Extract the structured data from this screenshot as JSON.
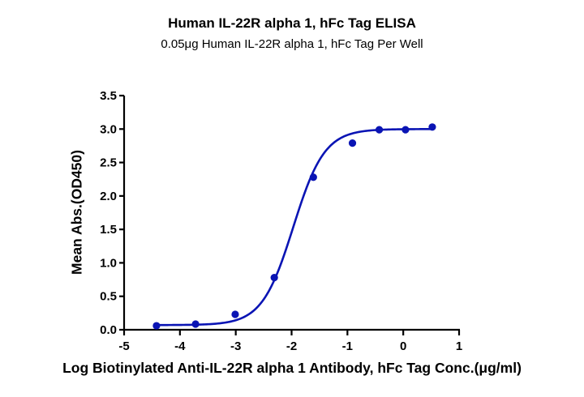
{
  "chart_data": {
    "type": "scatter",
    "title": "Human IL-22R alpha 1, hFc Tag ELISA",
    "subtitle": "0.05μg Human IL-22R alpha 1, hFc Tag Per Well",
    "xlabel": "Log Biotinylated Anti-IL-22R alpha 1 Antibody, hFc Tag Conc.(μg/ml)",
    "ylabel": "Mean Abs.(OD450)",
    "xlim": [
      -5,
      1
    ],
    "ylim": [
      0,
      3.5
    ],
    "x_ticks": [
      -5,
      -4,
      -3,
      -2,
      -1,
      0,
      1
    ],
    "x_tick_labels": [
      "-5",
      "-4",
      "-3",
      "-2",
      "-1",
      "0",
      "1"
    ],
    "y_ticks": [
      0,
      0.5,
      1.0,
      1.5,
      2.0,
      2.5,
      3.0,
      3.5
    ],
    "y_tick_labels": [
      "0.0",
      "0.5",
      "1.0",
      "1.5",
      "2.0",
      "2.5",
      "3.0",
      "3.5"
    ],
    "grid": false,
    "legend": null,
    "series": [
      {
        "name": "Mean Abs.(OD450)",
        "color": "#0a14b4",
        "x": [
          -4.42,
          -3.72,
          -3.01,
          -2.31,
          -1.61,
          -0.91,
          -0.43,
          0.04,
          0.52
        ],
        "y": [
          0.06,
          0.085,
          0.23,
          0.78,
          2.28,
          2.79,
          2.99,
          2.99,
          3.03
        ]
      }
    ],
    "fit": {
      "model": "4PL",
      "bottom": 0.07,
      "top": 3.0,
      "log_ec50": -1.97,
      "hill": 1.55,
      "color": "#0a14b4"
    }
  }
}
